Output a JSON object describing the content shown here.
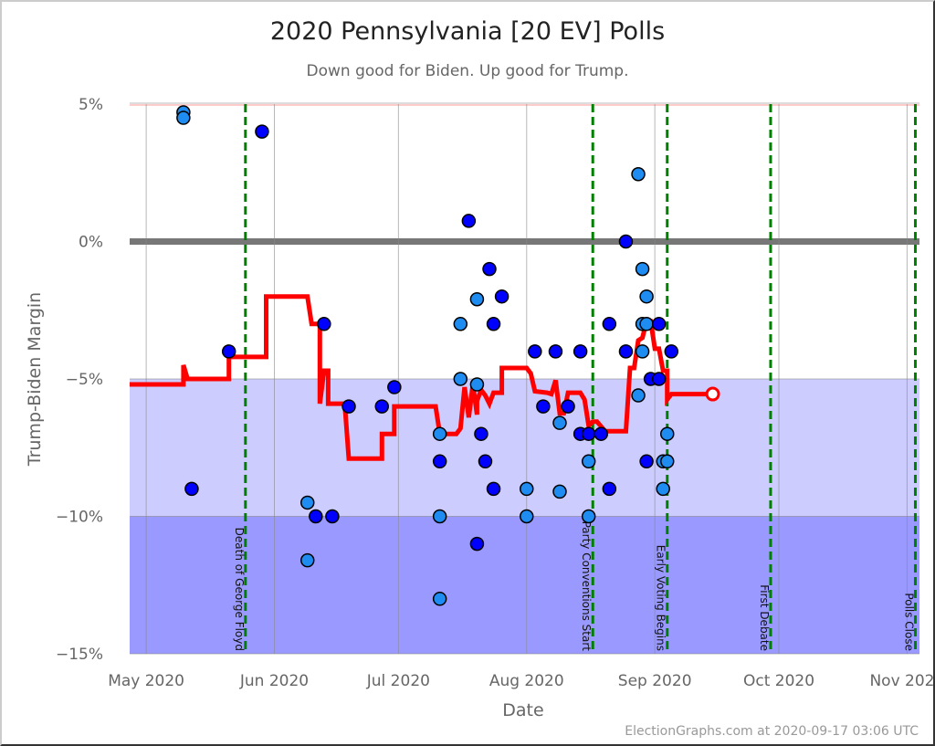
{
  "chart_data": {
    "type": "scatter",
    "title": "2020 Pennsylvania [20 EV] Polls",
    "subtitle": "Down good for Biden. Up good for Trump.",
    "xlabel": "Date",
    "ylabel": "Trump-Biden Margin",
    "xlim": [
      "2020-04-27",
      "2020-11-04"
    ],
    "ylim": [
      -15,
      5
    ],
    "y_ticks": [
      {
        "v": 5,
        "label": "5%"
      },
      {
        "v": 0,
        "label": "0%"
      },
      {
        "v": -5,
        "label": "−5%"
      },
      {
        "v": -10,
        "label": "−10%"
      },
      {
        "v": -15,
        "label": "−15%"
      }
    ],
    "x_ticks": [
      {
        "date": "2020-05-01",
        "label": "May 2020"
      },
      {
        "date": "2020-06-01",
        "label": "Jun 2020"
      },
      {
        "date": "2020-07-01",
        "label": "Jul 2020"
      },
      {
        "date": "2020-08-01",
        "label": "Aug 2020"
      },
      {
        "date": "2020-09-01",
        "label": "Sep 2020"
      },
      {
        "date": "2020-10-01",
        "label": "Oct 2020"
      },
      {
        "date": "2020-11-01",
        "label": "Nov 2020"
      }
    ],
    "grid": true,
    "bands": [
      {
        "from": -5,
        "to": -10,
        "color": "#ccccff"
      },
      {
        "from": -10,
        "to": -15,
        "color": "#9999ff"
      }
    ],
    "colors": {
      "poll_dark": "#0000ff",
      "poll_light": "#1e8cf0",
      "average": "#ff0000",
      "events": "#008000",
      "zero_line": "#777777"
    },
    "events": [
      {
        "date": "2020-05-25",
        "label": "Death of George Floyd"
      },
      {
        "date": "2020-08-17",
        "label": "Party Conventions Start"
      },
      {
        "date": "2020-09-04",
        "label": "Early Voting Begins"
      },
      {
        "date": "2020-09-29",
        "label": "First Debate"
      },
      {
        "date": "2020-11-03",
        "label": "Polls Close"
      }
    ],
    "polls": [
      {
        "date": "2020-05-10",
        "margin": 4.7,
        "shade": "light"
      },
      {
        "date": "2020-05-10",
        "margin": 4.5,
        "shade": "light"
      },
      {
        "date": "2020-05-12",
        "margin": -9,
        "shade": "dark"
      },
      {
        "date": "2020-05-21",
        "margin": -4,
        "shade": "dark"
      },
      {
        "date": "2020-05-29",
        "margin": 4,
        "shade": "dark"
      },
      {
        "date": "2020-06-09",
        "margin": -9.5,
        "shade": "light"
      },
      {
        "date": "2020-06-09",
        "margin": -11.6,
        "shade": "light"
      },
      {
        "date": "2020-06-11",
        "margin": -10,
        "shade": "dark"
      },
      {
        "date": "2020-06-13",
        "margin": -3,
        "shade": "dark"
      },
      {
        "date": "2020-06-15",
        "margin": -10,
        "shade": "dark"
      },
      {
        "date": "2020-06-19",
        "margin": -6,
        "shade": "dark"
      },
      {
        "date": "2020-06-27",
        "margin": -6,
        "shade": "dark"
      },
      {
        "date": "2020-06-30",
        "margin": -5.3,
        "shade": "dark"
      },
      {
        "date": "2020-07-11",
        "margin": -7,
        "shade": "light"
      },
      {
        "date": "2020-07-11",
        "margin": -8,
        "shade": "dark"
      },
      {
        "date": "2020-07-11",
        "margin": -10,
        "shade": "light"
      },
      {
        "date": "2020-07-11",
        "margin": -13,
        "shade": "light"
      },
      {
        "date": "2020-07-16",
        "margin": -3,
        "shade": "light"
      },
      {
        "date": "2020-07-16",
        "margin": -5,
        "shade": "light"
      },
      {
        "date": "2020-07-18",
        "margin": 0.75,
        "shade": "dark"
      },
      {
        "date": "2020-07-20",
        "margin": -5.2,
        "shade": "light"
      },
      {
        "date": "2020-07-20",
        "margin": -2.1,
        "shade": "light"
      },
      {
        "date": "2020-07-20",
        "margin": -11,
        "shade": "dark"
      },
      {
        "date": "2020-07-21",
        "margin": -7,
        "shade": "dark"
      },
      {
        "date": "2020-07-22",
        "margin": -8,
        "shade": "dark"
      },
      {
        "date": "2020-07-23",
        "margin": -1,
        "shade": "dark"
      },
      {
        "date": "2020-07-24",
        "margin": -3,
        "shade": "dark"
      },
      {
        "date": "2020-07-24",
        "margin": -9,
        "shade": "dark"
      },
      {
        "date": "2020-07-26",
        "margin": -2,
        "shade": "dark"
      },
      {
        "date": "2020-08-01",
        "margin": -9,
        "shade": "light"
      },
      {
        "date": "2020-08-01",
        "margin": -10,
        "shade": "light"
      },
      {
        "date": "2020-08-03",
        "margin": -4,
        "shade": "dark"
      },
      {
        "date": "2020-08-05",
        "margin": -6,
        "shade": "dark"
      },
      {
        "date": "2020-08-08",
        "margin": -4,
        "shade": "dark"
      },
      {
        "date": "2020-08-09",
        "margin": -6.6,
        "shade": "light"
      },
      {
        "date": "2020-08-09",
        "margin": -9.1,
        "shade": "light"
      },
      {
        "date": "2020-08-11",
        "margin": -6,
        "shade": "dark"
      },
      {
        "date": "2020-08-14",
        "margin": -4,
        "shade": "dark"
      },
      {
        "date": "2020-08-14",
        "margin": -7,
        "shade": "dark"
      },
      {
        "date": "2020-08-16",
        "margin": -7,
        "shade": "dark"
      },
      {
        "date": "2020-08-16",
        "margin": -8,
        "shade": "light"
      },
      {
        "date": "2020-08-16",
        "margin": -10,
        "shade": "light"
      },
      {
        "date": "2020-08-19",
        "margin": -7,
        "shade": "dark"
      },
      {
        "date": "2020-08-21",
        "margin": -3,
        "shade": "dark"
      },
      {
        "date": "2020-08-21",
        "margin": -9,
        "shade": "dark"
      },
      {
        "date": "2020-08-25",
        "margin": -4,
        "shade": "dark"
      },
      {
        "date": "2020-08-25",
        "margin": 0,
        "shade": "dark"
      },
      {
        "date": "2020-08-28",
        "margin": 2.45,
        "shade": "light"
      },
      {
        "date": "2020-08-28",
        "margin": -5.6,
        "shade": "light"
      },
      {
        "date": "2020-08-29",
        "margin": -1,
        "shade": "light"
      },
      {
        "date": "2020-08-29",
        "margin": -3,
        "shade": "light"
      },
      {
        "date": "2020-08-29",
        "margin": -4,
        "shade": "light"
      },
      {
        "date": "2020-08-30",
        "margin": -2,
        "shade": "light"
      },
      {
        "date": "2020-08-30",
        "margin": -3,
        "shade": "light"
      },
      {
        "date": "2020-08-30",
        "margin": -8,
        "shade": "dark"
      },
      {
        "date": "2020-08-31",
        "margin": -5,
        "shade": "dark"
      },
      {
        "date": "2020-09-02",
        "margin": -5,
        "shade": "dark"
      },
      {
        "date": "2020-09-02",
        "margin": -3,
        "shade": "dark"
      },
      {
        "date": "2020-09-03",
        "margin": -8,
        "shade": "light"
      },
      {
        "date": "2020-09-03",
        "margin": -9,
        "shade": "light"
      },
      {
        "date": "2020-09-04",
        "margin": -7,
        "shade": "light"
      },
      {
        "date": "2020-09-04",
        "margin": -8,
        "shade": "light"
      },
      {
        "date": "2020-09-05",
        "margin": -4,
        "shade": "dark"
      }
    ],
    "average": [
      [
        "2020-04-27",
        -5.2
      ],
      [
        "2020-05-10",
        -5.2
      ],
      [
        "2020-05-10",
        -4.5
      ],
      [
        "2020-05-11",
        -5.0
      ],
      [
        "2020-05-21",
        -5.0
      ],
      [
        "2020-05-21",
        -4.2
      ],
      [
        "2020-05-30",
        -4.2
      ],
      [
        "2020-05-30",
        -2.0
      ],
      [
        "2020-06-09",
        -2.0
      ],
      [
        "2020-06-10",
        -3.0
      ],
      [
        "2020-06-12",
        -3.0
      ],
      [
        "2020-06-12",
        -5.9
      ],
      [
        "2020-06-13",
        -4.7
      ],
      [
        "2020-06-14",
        -4.7
      ],
      [
        "2020-06-14",
        -5.9
      ],
      [
        "2020-06-18",
        -5.9
      ],
      [
        "2020-06-19",
        -7.9
      ],
      [
        "2020-06-27",
        -7.9
      ],
      [
        "2020-06-27",
        -7.0
      ],
      [
        "2020-06-30",
        -7.0
      ],
      [
        "2020-06-30",
        -6.0
      ],
      [
        "2020-07-10",
        -6.0
      ],
      [
        "2020-07-11",
        -7.0
      ],
      [
        "2020-07-15",
        -7.0
      ],
      [
        "2020-07-16",
        -6.8
      ],
      [
        "2020-07-17",
        -5.3
      ],
      [
        "2020-07-18",
        -6.4
      ],
      [
        "2020-07-19",
        -5.2
      ],
      [
        "2020-07-20",
        -6.3
      ],
      [
        "2020-07-20",
        -5.8
      ],
      [
        "2020-07-21",
        -5.4
      ],
      [
        "2020-07-22",
        -5.6
      ],
      [
        "2020-07-23",
        -5.9
      ],
      [
        "2020-07-24",
        -5.5
      ],
      [
        "2020-07-26",
        -5.5
      ],
      [
        "2020-07-26",
        -4.6
      ],
      [
        "2020-08-01",
        -4.6
      ],
      [
        "2020-08-02",
        -4.8
      ],
      [
        "2020-08-03",
        -5.45
      ],
      [
        "2020-08-06",
        -5.5
      ],
      [
        "2020-08-07",
        -5.55
      ],
      [
        "2020-08-08",
        -5.05
      ],
      [
        "2020-08-09",
        -6.25
      ],
      [
        "2020-08-10",
        -6.25
      ],
      [
        "2020-08-11",
        -5.5
      ],
      [
        "2020-08-14",
        -5.5
      ],
      [
        "2020-08-15",
        -5.75
      ],
      [
        "2020-08-16",
        -6.7
      ],
      [
        "2020-08-17",
        -6.55
      ],
      [
        "2020-08-18",
        -6.55
      ],
      [
        "2020-08-20",
        -6.9
      ],
      [
        "2020-08-25",
        -6.9
      ],
      [
        "2020-08-26",
        -4.6
      ],
      [
        "2020-08-27",
        -4.6
      ],
      [
        "2020-08-28",
        -3.6
      ],
      [
        "2020-08-29",
        -3.5
      ],
      [
        "2020-08-30",
        -2.9
      ],
      [
        "2020-08-31",
        -2.9
      ],
      [
        "2020-09-01",
        -3.9
      ],
      [
        "2020-09-02",
        -3.9
      ],
      [
        "2020-09-03",
        -4.7
      ],
      [
        "2020-09-04",
        -4.7
      ],
      [
        "2020-09-04",
        -5.75
      ],
      [
        "2020-09-05",
        -5.55
      ],
      [
        "2020-09-15",
        -5.55
      ]
    ],
    "footer": "ElectionGraphs.com at 2020-09-17 03:06 UTC"
  }
}
